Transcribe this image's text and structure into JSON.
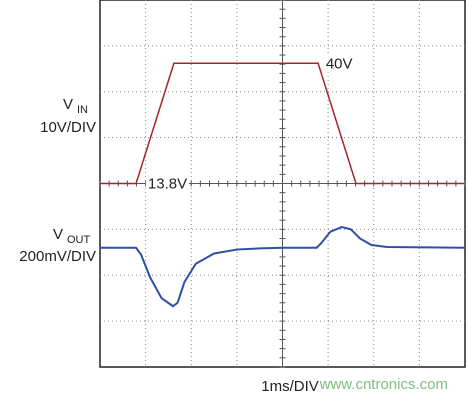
{
  "chart_data": {
    "type": "scope",
    "x_label": "1ms/DIV",
    "watermark": "www.cntronics.com",
    "xlim": [
      0,
      8
    ],
    "traces": [
      {
        "name_main": "V",
        "name_sub": "IN",
        "scale": "10V/DIV",
        "color": "#a3262c",
        "ylim": [
          -26.2,
          53.8
        ],
        "x": [
          0,
          0.79,
          1.62,
          4.78,
          5.61,
          8
        ],
        "values": [
          13.8,
          13.8,
          40,
          40,
          13.8,
          13.8
        ]
      },
      {
        "name_main": "V",
        "name_sub": "OUT",
        "scale": "200mV/DIV",
        "color": "#2f4fa8",
        "ylim": [
          -520,
          1080
        ],
        "x": [
          0,
          0.79,
          0.9,
          1.1,
          1.35,
          1.6,
          1.7,
          1.85,
          2.1,
          2.5,
          3,
          3.5,
          4,
          4.75,
          4.85,
          5.05,
          5.3,
          5.5,
          5.7,
          5.95,
          6.3,
          8
        ],
        "values": [
          0,
          0,
          -30,
          -130,
          -220,
          -255,
          -240,
          -150,
          -70,
          -25,
          -8,
          -3,
          0,
          0,
          20,
          70,
          90,
          80,
          40,
          12,
          3,
          0
        ]
      }
    ],
    "annotations": [
      {
        "text": "40V",
        "trace": 0,
        "x": 4.95,
        "value": 40
      },
      {
        "text": "13.8V",
        "trace": 0,
        "x": 1.05,
        "value": 13.8
      }
    ]
  }
}
